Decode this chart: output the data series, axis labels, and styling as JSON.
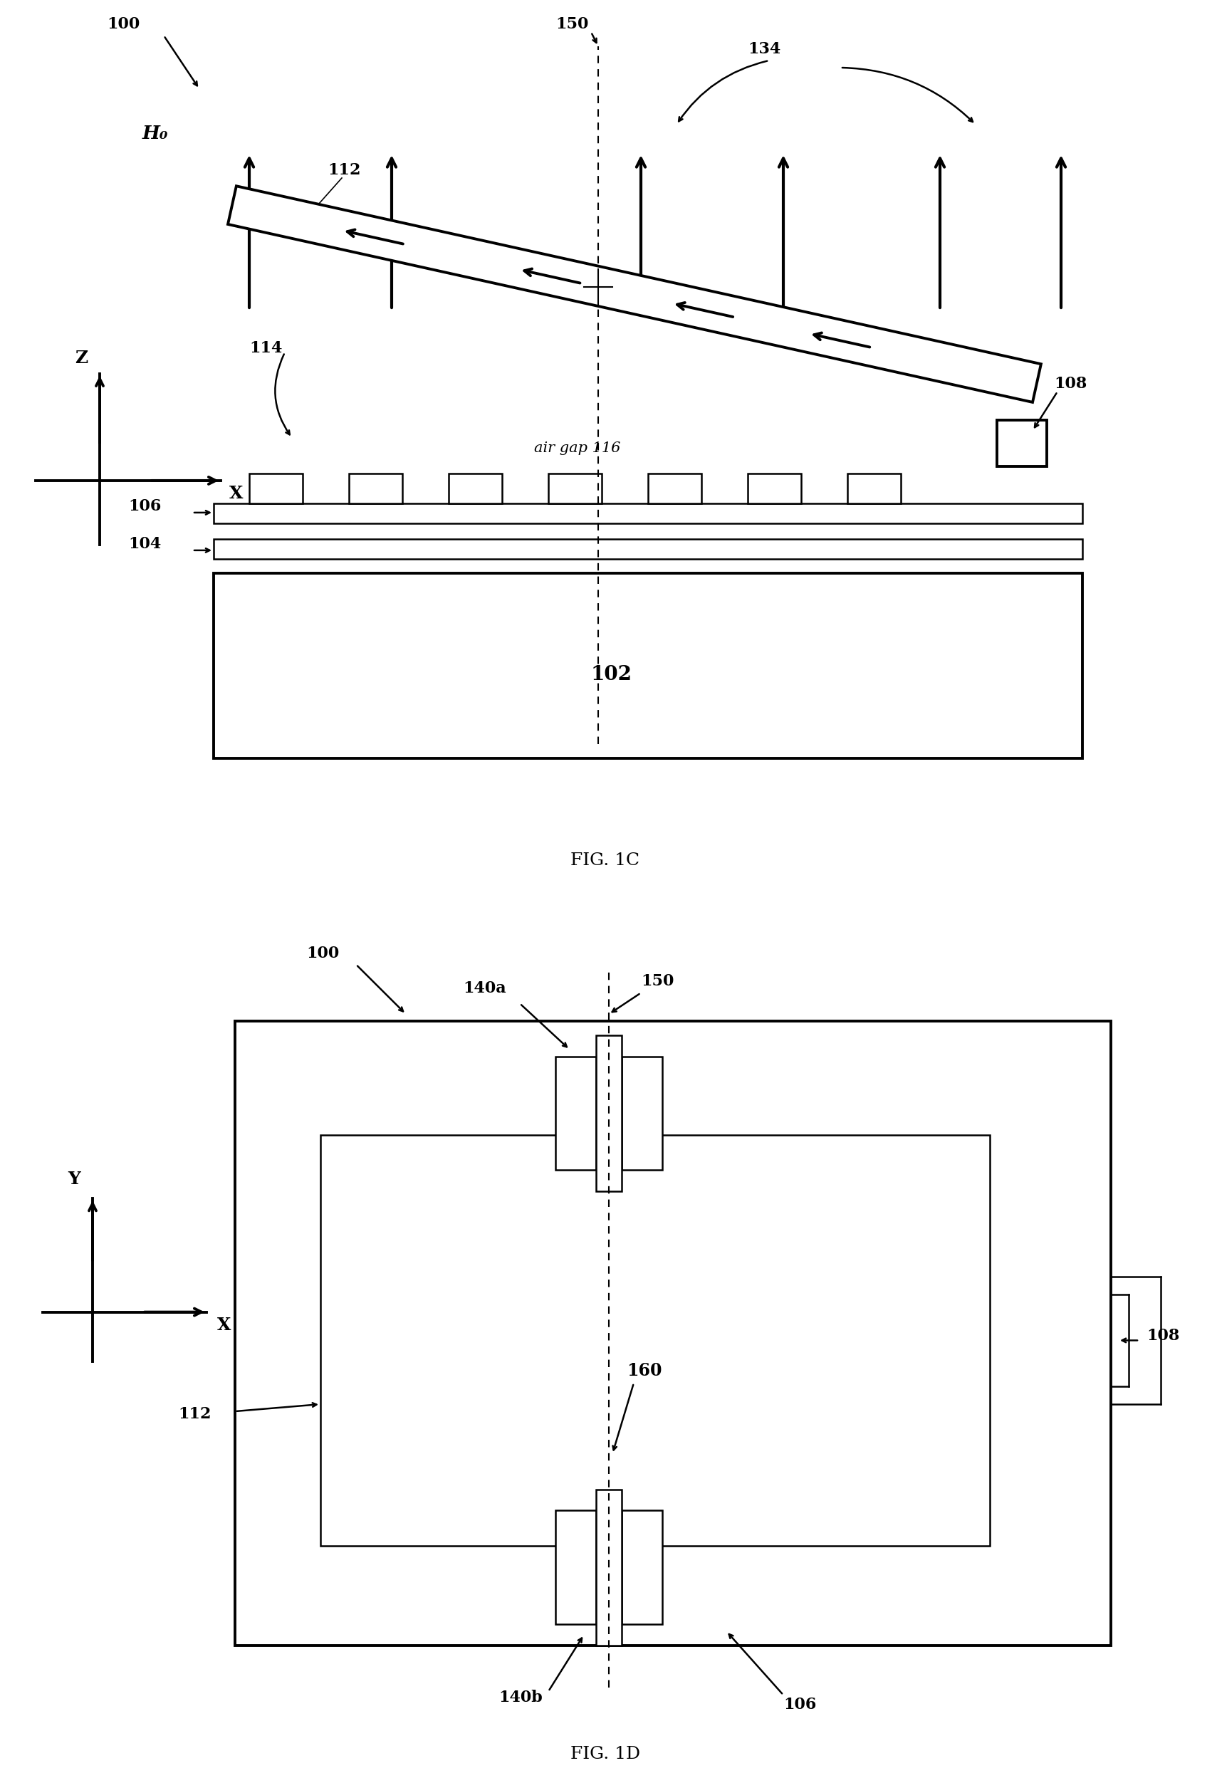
{
  "fig_width": 17.09,
  "fig_height": 24.9,
  "bg_color": "#ffffff",
  "line_color": "#000000",
  "fig1c_label": "FIG. 1C",
  "fig1d_label": "FIG. 1D",
  "label_100_1c": "100",
  "label_150_1c": "150",
  "label_134_1c": "134",
  "label_112_1c": "112",
  "label_114_1c": "114",
  "label_108_1c": "108",
  "label_106_1c": "106",
  "label_104_1c": "104",
  "label_102_1c": "102",
  "label_116_1c": "air gap 116",
  "label_H0": "H₀",
  "label_100_1d": "100",
  "label_150_1d": "150",
  "label_140a": "140a",
  "label_140b": "140b",
  "label_108_1d": "108",
  "label_112_1d": "112",
  "label_106_1d": "106",
  "label_160": "160",
  "lw": 1.8,
  "lw_thick": 2.8,
  "lw_arrow": 3.0,
  "fontsize_label": 16,
  "fontsize_caption": 18
}
